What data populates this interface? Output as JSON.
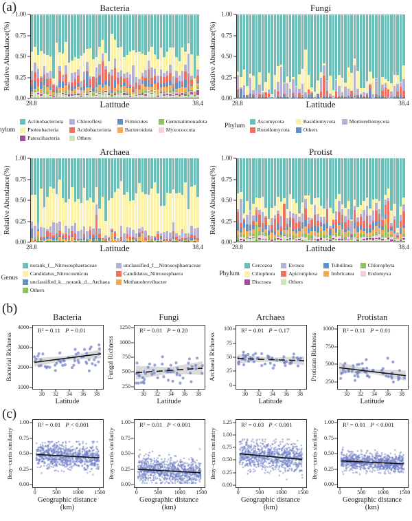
{
  "labels": {
    "a": "(a)",
    "b": "(b)",
    "c": "(c)"
  },
  "style": {
    "point_color": "#6b7cc4",
    "trend_line_color": "#111111",
    "band_color": "#bcbcbc",
    "axis_color": "#333333"
  },
  "chart_data": [
    {
      "id": "a-bacteria",
      "panel": "a",
      "type": "stacked-bar",
      "title": "Bacteria",
      "ylabel": "Relative Abundance(%)",
      "xlabel": "Latitude",
      "x_start_label": "28.8",
      "x_end_label": "38.4",
      "yticks": [
        "1.00",
        "0.75",
        "0.50",
        "0.25",
        "0.00"
      ],
      "bars": 55,
      "seed": 11,
      "legend_title": "Phylum",
      "legend_columns": 4,
      "series": [
        {
          "name": "Others",
          "color": "#cbe3b6",
          "mean": 0.035,
          "sd": 0.012
        },
        {
          "name": "Patescibacteria",
          "color": "#a14e9d",
          "mean": 0.012,
          "sd": 0.006
        },
        {
          "name": "Myxococcota",
          "color": "#f8ccdd",
          "mean": 0.01,
          "sd": 0.005
        },
        {
          "name": "Gemmatimonadota",
          "color": "#8ec05f",
          "mean": 0.018,
          "sd": 0.01
        },
        {
          "name": "Bacteroidota",
          "color": "#f6a852",
          "mean": 0.04,
          "sd": 0.018
        },
        {
          "name": "Firmicutes",
          "color": "#6090c5",
          "mean": 0.045,
          "sd": 0.028
        },
        {
          "name": "Acidobacteriota",
          "color": "#ef7060",
          "mean": 0.07,
          "sd": 0.035
        },
        {
          "name": "Chloroflexi",
          "color": "#b6afd4",
          "mean": 0.07,
          "sd": 0.04
        },
        {
          "name": "Proteobacteria",
          "color": "#fbf1a9",
          "mean": 0.21,
          "sd": 0.07
        },
        {
          "name": "Actinobacteriota",
          "color": "#6cbeb8",
          "mean": 0.46,
          "sd": 0.1
        }
      ],
      "legend_order": [
        "Actinobacteriota",
        "Chloroflexi",
        "Firmicutes",
        "Gemmatimonadota",
        "Proteobacteria",
        "Acidobacteriota",
        "Bacteroidota",
        "Myxococcota",
        "Patescibacteria",
        "Others"
      ]
    },
    {
      "id": "a-fungi",
      "panel": "a",
      "type": "stacked-bar",
      "title": "Fungi",
      "ylabel": "Relative Abundance(%)",
      "xlabel": "Latitude",
      "x_start_label": "28.8",
      "x_end_label": "38.4",
      "yticks": [
        "1.00",
        "0.75",
        "0.50",
        "0.25",
        "0.00"
      ],
      "bars": 55,
      "seed": 12,
      "legend_title": "Phylum",
      "legend_columns": 3,
      "series": [
        {
          "name": "Others",
          "color": "#6090c5",
          "mean": 0.015,
          "sd": 0.015
        },
        {
          "name": "Rozellomycota",
          "color": "#ef7060",
          "mean": 0.028,
          "sd": 0.055
        },
        {
          "name": "Mortierellomycota",
          "color": "#b6afd4",
          "mean": 0.05,
          "sd": 0.075
        },
        {
          "name": "Basidiomycota",
          "color": "#fbf1a9",
          "mean": 0.1,
          "sd": 0.09
        },
        {
          "name": "Ascomycota",
          "color": "#6cbeb8",
          "mean": 0.8,
          "sd": 0.12
        }
      ],
      "legend_order": [
        "Ascomycota",
        "Basidiomycota",
        "Mortierellomycota",
        "Rozellomycota",
        "Others"
      ]
    },
    {
      "id": "a-archaea",
      "panel": "a",
      "type": "stacked-bar",
      "title": "Archaea",
      "ylabel": "Relative Abundance(%)",
      "xlabel": "Latitude",
      "x_start_label": "28.8",
      "x_end_label": "38.4",
      "yticks": [
        "1.00",
        "0.75",
        "0.50",
        "0.25",
        "0.00"
      ],
      "bars": 55,
      "seed": 13,
      "legend_title": "Genus",
      "legend_columns": 2,
      "series": [
        {
          "name": "Others",
          "color": "#8ec05f",
          "mean": 0.006,
          "sd": 0.008
        },
        {
          "name": "Methanobrevibacter",
          "color": "#f6a852",
          "mean": 0.008,
          "sd": 0.02
        },
        {
          "name": "unclassified_k__norank_d__Archaea",
          "color": "#6090c5",
          "mean": 0.015,
          "sd": 0.02
        },
        {
          "name": "Candidatus_Nitrososphaera",
          "color": "#ef7060",
          "mean": 0.035,
          "sd": 0.025
        },
        {
          "name": "unclassified_f__Nitrososphaeraceae",
          "color": "#b6afd4",
          "mean": 0.07,
          "sd": 0.05
        },
        {
          "name": "Candidatus_Nitrocosmicus",
          "color": "#fbf1a9",
          "mean": 0.4,
          "sd": 0.15
        },
        {
          "name": "norank_f__Nitrososphaeraceae",
          "color": "#6cbeb8",
          "mean": 0.46,
          "sd": 0.12
        }
      ],
      "legend_order": [
        "norank_f__Nitrososphaeraceae",
        "unclassified_f__Nitrososphaeraceae",
        "Candidatus_Nitrocosmicus",
        "Candidatus_Nitrososphaera",
        "unclassified_k__norank_d__Archaea",
        "Methanobrevibacter",
        "Others"
      ]
    },
    {
      "id": "a-protist",
      "panel": "a",
      "type": "stacked-bar",
      "title": "Protist",
      "ylabel": "Relative Abundance(%)",
      "xlabel": "Latitude",
      "x_start_label": "28.8",
      "x_end_label": "38.4",
      "yticks": [
        "1.00",
        "0.75",
        "0.50",
        "0.25",
        "0.00"
      ],
      "bars": 55,
      "seed": 14,
      "legend_title": "Phylum",
      "legend_columns": 4,
      "series": [
        {
          "name": "Others",
          "color": "#cbe3b6",
          "mean": 0.02,
          "sd": 0.01
        },
        {
          "name": "Discosea",
          "color": "#a14e9d",
          "mean": 0.013,
          "sd": 0.008
        },
        {
          "name": "Endomyxa",
          "color": "#f8ccdd",
          "mean": 0.02,
          "sd": 0.015
        },
        {
          "name": "Chlorophyta",
          "color": "#8ec05f",
          "mean": 0.03,
          "sd": 0.02
        },
        {
          "name": "Imbricatea",
          "color": "#f6a852",
          "mean": 0.05,
          "sd": 0.02
        },
        {
          "name": "Tubulinea",
          "color": "#6090c5",
          "mean": 0.055,
          "sd": 0.025
        },
        {
          "name": "Apicomplexa",
          "color": "#ef7060",
          "mean": 0.08,
          "sd": 0.05
        },
        {
          "name": "Evosea",
          "color": "#b6afd4",
          "mean": 0.075,
          "sd": 0.04
        },
        {
          "name": "Ciliophora",
          "color": "#fbf1a9",
          "mean": 0.1,
          "sd": 0.06
        },
        {
          "name": "Cercozoa",
          "color": "#6cbeb8",
          "mean": 0.55,
          "sd": 0.11
        }
      ],
      "legend_order": [
        "Cercozoa",
        "Evosea",
        "Tubulinea",
        "Chlorophyta",
        "Ciliophora",
        "Apicomplexa",
        "Imbricatea",
        "Endomyxa",
        "Discosea",
        "Others"
      ]
    },
    {
      "id": "b-bacteria",
      "panel": "b",
      "type": "scatter",
      "title": "Bacteria",
      "ylabel": "Bacterial Richness",
      "xlabel": "Latitude",
      "stats": {
        "r2": "R² = 0.11",
        "p": "P = 0.01"
      },
      "w": 102,
      "h": 92,
      "xlim": [
        28.6,
        38.8
      ],
      "ylim": [
        900,
        4150
      ],
      "xticks": [
        [
          30,
          "30"
        ],
        [
          32,
          "32"
        ],
        [
          34,
          "34"
        ],
        [
          36,
          "36"
        ],
        [
          38,
          "38"
        ]
      ],
      "yticks": [
        [
          1000,
          "1000"
        ],
        [
          2000,
          "2000"
        ],
        [
          3000,
          "3000"
        ],
        [
          4000,
          "4000"
        ]
      ],
      "n": 52,
      "seed": 21,
      "x_range": [
        28.8,
        38.5
      ],
      "trend": {
        "x": [
          28.8,
          38.5
        ],
        "y": [
          2260,
          2700
        ],
        "dashed": false
      },
      "sd": 330,
      "clip": [
        1480,
        3280
      ],
      "band": {
        "h_center": 110,
        "h_edge": 220
      },
      "point_r": 2.1,
      "point_opacity": 0.7
    },
    {
      "id": "b-fungi",
      "panel": "b",
      "type": "scatter",
      "title": "Fungi",
      "ylabel": "Fungal Richness",
      "xlabel": "Latitude",
      "stats": {
        "r2": "R² = 0.01",
        "p": "P = 0.20"
      },
      "w": 102,
      "h": 92,
      "xlim": [
        28.6,
        38.8
      ],
      "ylim": [
        200,
        1300
      ],
      "xticks": [
        [
          30,
          "30"
        ],
        [
          32,
          "32"
        ],
        [
          34,
          "34"
        ],
        [
          36,
          "36"
        ],
        [
          38,
          "38"
        ]
      ],
      "yticks": [
        [
          250,
          "250"
        ],
        [
          500,
          "500"
        ],
        [
          750,
          "750"
        ],
        [
          1000,
          "1000"
        ],
        [
          1250,
          "1250"
        ]
      ],
      "n": 52,
      "seed": 22,
      "x_range": [
        28.8,
        38.5
      ],
      "trend": {
        "x": [
          28.8,
          38.5
        ],
        "y": [
          480,
          560
        ],
        "dashed": true
      },
      "sd": 120,
      "clip": [
        300,
        910
      ],
      "band": {
        "h_center": 55,
        "h_edge": 120
      },
      "point_r": 2.1,
      "point_opacity": 0.7
    },
    {
      "id": "b-archaea",
      "panel": "b",
      "type": "scatter",
      "title": "Archaea",
      "ylabel": "Archaeal Richness",
      "xlabel": "Latitude",
      "stats": {
        "r2": "R² = 0.01",
        "p": "P = 0.17"
      },
      "w": 102,
      "h": 92,
      "xlim": [
        28.6,
        38.8
      ],
      "ylim": [
        -8,
        108
      ],
      "xticks": [
        [
          30,
          "30"
        ],
        [
          32,
          "32"
        ],
        [
          34,
          "34"
        ],
        [
          36,
          "36"
        ],
        [
          38,
          "38"
        ]
      ],
      "yticks": [
        [
          0,
          "0"
        ],
        [
          25,
          "25"
        ],
        [
          50,
          "50"
        ],
        [
          75,
          "75"
        ],
        [
          100,
          "100"
        ]
      ],
      "n": 52,
      "seed": 23,
      "x_range": [
        28.8,
        38.5
      ],
      "trend": {
        "x": [
          28.8,
          38.5
        ],
        "y": [
          47.5,
          43.5
        ],
        "dashed": true
      },
      "sd": 7,
      "clip": [
        30,
        64
      ],
      "band": {
        "h_center": 3.5,
        "h_edge": 8
      },
      "point_r": 2.1,
      "point_opacity": 0.7
    },
    {
      "id": "b-protistan",
      "panel": "b",
      "type": "scatter",
      "title": "Protistan",
      "ylabel": "Protistan Richness",
      "xlabel": "Latitude",
      "stats": {
        "r2": "R² = 0.11",
        "p": "P = 0.01"
      },
      "w": 102,
      "h": 92,
      "xlim": [
        28.6,
        38.8
      ],
      "ylim": [
        140,
        1060
      ],
      "xticks": [
        [
          30,
          "30"
        ],
        [
          32,
          "32"
        ],
        [
          34,
          "34"
        ],
        [
          36,
          "36"
        ],
        [
          38,
          "38"
        ]
      ],
      "yticks": [
        [
          250,
          "250"
        ],
        [
          500,
          "500"
        ],
        [
          750,
          "750"
        ],
        [
          1000,
          "1000"
        ]
      ],
      "n": 52,
      "seed": 24,
      "x_range": [
        28.8,
        38.5
      ],
      "trend": {
        "x": [
          28.8,
          38.5
        ],
        "y": [
          448,
          332
        ],
        "dashed": false
      },
      "sd": 85,
      "clip": [
        195,
        655
      ],
      "band": {
        "h_center": 32,
        "h_edge": 75
      },
      "point_r": 2.1,
      "point_opacity": 0.7
    },
    {
      "id": "c-bacteria",
      "panel": "c",
      "type": "scatter",
      "title": "",
      "ylabel": "Bray−curtis similarity",
      "xlabel": "Geographic distance (km)",
      "stats": {
        "r2": "R² = 0.01",
        "p": "P < 0.001"
      },
      "w": 102,
      "h": 98,
      "xlim": [
        -60,
        1560
      ],
      "ylim": [
        -0.05,
        1.06
      ],
      "xticks": [
        [
          0,
          "0"
        ],
        [
          500,
          "500"
        ],
        [
          1000,
          "1000"
        ],
        [
          1500,
          "1500"
        ]
      ],
      "yticks": [
        [
          0,
          "0.00"
        ],
        [
          0.25,
          "0.25"
        ],
        [
          0.5,
          "0.50"
        ],
        [
          0.75,
          "0.75"
        ],
        [
          1,
          "1.00"
        ]
      ],
      "n": 850,
      "seed": 31,
      "x_range": [
        15,
        1470
      ],
      "trend": {
        "x": [
          15,
          1470
        ],
        "y": [
          0.49,
          0.435
        ],
        "dashed": false
      },
      "sd": 0.105,
      "clip": [
        0.09,
        0.7
      ],
      "band": null,
      "point_r": 1.3,
      "point_opacity": 0.5
    },
    {
      "id": "c-fungi",
      "panel": "c",
      "type": "scatter",
      "title": "",
      "ylabel": "Bray−curtis similarity",
      "xlabel": "Geographic distance (km)",
      "stats": {
        "r2": "R² = 0.01",
        "p": "P < 0.001"
      },
      "w": 102,
      "h": 98,
      "xlim": [
        -60,
        1560
      ],
      "ylim": [
        -0.05,
        1.06
      ],
      "xticks": [
        [
          0,
          "0"
        ],
        [
          500,
          "500"
        ],
        [
          1000,
          "1000"
        ],
        [
          1500,
          "1500"
        ]
      ],
      "yticks": [
        [
          0,
          "0.00"
        ],
        [
          0.25,
          "0.25"
        ],
        [
          0.5,
          "0.50"
        ],
        [
          0.75,
          "0.75"
        ],
        [
          1,
          "1.00"
        ]
      ],
      "n": 850,
      "seed": 32,
      "x_range": [
        15,
        1470
      ],
      "trend": {
        "x": [
          15,
          1470
        ],
        "y": [
          0.245,
          0.19
        ],
        "dashed": false
      },
      "sd": 0.105,
      "clip": [
        0.02,
        0.78
      ],
      "band": null,
      "point_r": 1.3,
      "point_opacity": 0.5
    },
    {
      "id": "c-archaea",
      "panel": "c",
      "type": "scatter",
      "title": "",
      "ylabel": "Bray−curtis similarity",
      "xlabel": "Geographic distance (km)",
      "stats": {
        "r2": "R² = 0.03",
        "p": "P < 0.001"
      },
      "w": 102,
      "h": 98,
      "xlim": [
        -60,
        1560
      ],
      "ylim": [
        -0.06,
        1.32
      ],
      "xticks": [
        [
          0,
          "0"
        ],
        [
          500,
          "500"
        ],
        [
          1000,
          "1000"
        ],
        [
          1500,
          "1500"
        ]
      ],
      "yticks": [
        [
          0,
          "0.00"
        ],
        [
          0.25,
          "0.25"
        ],
        [
          0.5,
          "0.50"
        ],
        [
          0.75,
          "0.75"
        ],
        [
          1,
          "1.00"
        ],
        [
          1.25,
          "1.25"
        ]
      ],
      "n": 850,
      "seed": 33,
      "x_range": [
        15,
        1470
      ],
      "trend": {
        "x": [
          15,
          1470
        ],
        "y": [
          0.625,
          0.51
        ],
        "dashed": false
      },
      "sd": 0.145,
      "clip": [
        0.1,
        0.92
      ],
      "band": null,
      "point_r": 1.3,
      "point_opacity": 0.5
    },
    {
      "id": "c-protist",
      "panel": "c",
      "type": "scatter",
      "title": "",
      "ylabel": "Bray−curtis similarity",
      "xlabel": "Geographic distance (km)",
      "stats": {
        "r2": "R² = 0.01",
        "p": "P < 0.001"
      },
      "w": 102,
      "h": 98,
      "xlim": [
        -60,
        1560
      ],
      "ylim": [
        -0.05,
        1.06
      ],
      "xticks": [
        [
          0,
          "0"
        ],
        [
          500,
          "500"
        ],
        [
          1000,
          "1000"
        ],
        [
          1500,
          "1500"
        ]
      ],
      "yticks": [
        [
          0,
          "0.00"
        ],
        [
          0.25,
          "0.25"
        ],
        [
          0.5,
          "0.50"
        ],
        [
          0.75,
          "0.75"
        ],
        [
          1,
          "1.00"
        ]
      ],
      "n": 850,
      "seed": 34,
      "x_range": [
        15,
        1470
      ],
      "trend": {
        "x": [
          15,
          1470
        ],
        "y": [
          0.385,
          0.335
        ],
        "dashed": false
      },
      "sd": 0.075,
      "clip": [
        0.13,
        0.62
      ],
      "band": null,
      "point_r": 1.3,
      "point_opacity": 0.5
    }
  ]
}
